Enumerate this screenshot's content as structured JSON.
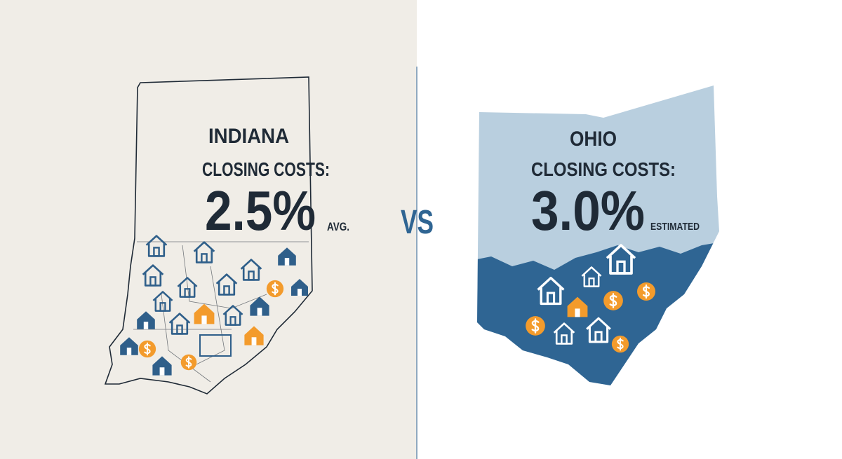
{
  "left": {
    "state": "INDIANA",
    "label": "CLOSING COSTS:",
    "value": "2.5%",
    "note": "AVG."
  },
  "divider": "VS",
  "right": {
    "state": "OHIO",
    "label": "CLOSING COSTS:",
    "value": "3.0%",
    "note": "ESTIMATED"
  }
}
